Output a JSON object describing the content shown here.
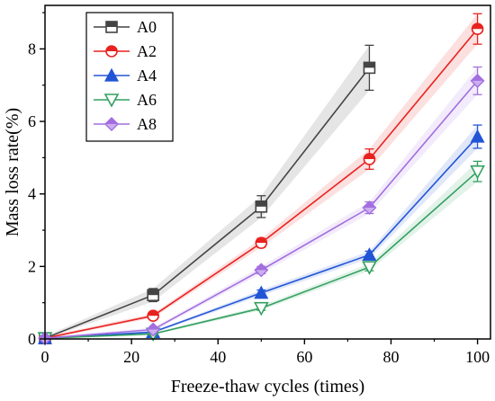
{
  "chart_data": {
    "type": "line",
    "xlabel": "Freeze-thaw cycles (times)",
    "ylabel": "Mass loss rate(%)",
    "xlim": [
      0,
      103
    ],
    "ylim": [
      0,
      9.2
    ],
    "xticks": [
      0,
      20,
      40,
      60,
      80,
      100
    ],
    "yticks": [
      0,
      2,
      4,
      6,
      8
    ],
    "x_tick_labels": [
      "0",
      "20",
      "40",
      "60",
      "80",
      "100"
    ],
    "y_tick_labels": [
      "0",
      "2",
      "4",
      "6",
      "8"
    ],
    "grid": false,
    "legend_position": "top-left",
    "series": [
      {
        "name": "A0",
        "color": "#444444",
        "marker": "square",
        "x": [
          0,
          25,
          50,
          75
        ],
        "y": [
          0.02,
          1.21,
          3.65,
          7.48
        ],
        "err": [
          0.05,
          0.18,
          0.3,
          0.62
        ]
      },
      {
        "name": "A2",
        "color": "#e8221f",
        "marker": "circle",
        "x": [
          0,
          25,
          50,
          75,
          100
        ],
        "y": [
          0.02,
          0.64,
          2.65,
          4.96,
          8.55
        ],
        "err": [
          0.05,
          0.06,
          0.12,
          0.28,
          0.42
        ]
      },
      {
        "name": "A4",
        "color": "#2255d6",
        "marker": "triangle-up",
        "x": [
          0,
          25,
          50,
          75,
          100
        ],
        "y": [
          0.02,
          0.19,
          1.27,
          2.32,
          5.58
        ],
        "err": [
          0.03,
          0.03,
          0.08,
          0.1,
          0.32
        ]
      },
      {
        "name": "A6",
        "color": "#33a060",
        "marker": "triangle-down",
        "x": [
          0,
          25,
          50,
          75,
          100
        ],
        "y": [
          0.02,
          0.14,
          0.85,
          1.98,
          4.62
        ],
        "err": [
          0.02,
          0.03,
          0.06,
          0.1,
          0.28
        ]
      },
      {
        "name": "A8",
        "color": "#a26ee0",
        "marker": "diamond",
        "x": [
          0,
          25,
          50,
          75,
          100
        ],
        "y": [
          0.02,
          0.26,
          1.9,
          3.62,
          7.12
        ],
        "err": [
          0.03,
          0.05,
          0.1,
          0.16,
          0.38
        ]
      }
    ]
  }
}
